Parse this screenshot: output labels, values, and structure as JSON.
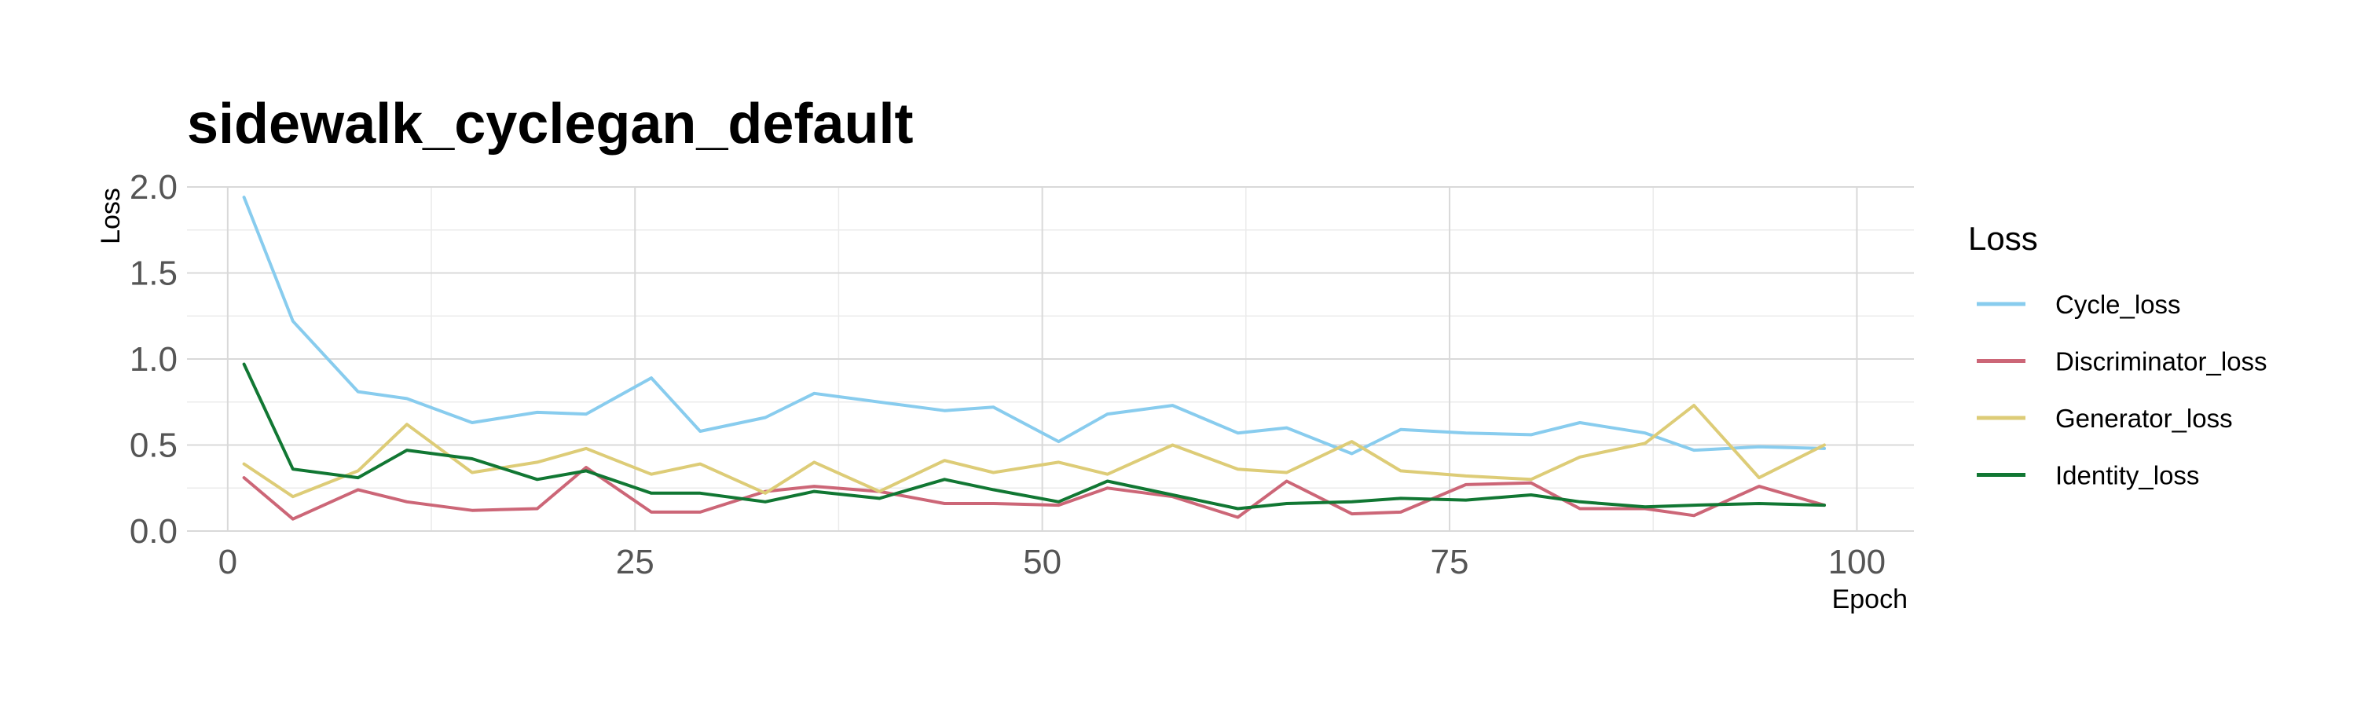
{
  "chart_data": {
    "type": "line",
    "title": "sidewalk_cyclegan_default",
    "xlabel": "Epoch",
    "ylabel": "Loss",
    "xlim": [
      -2.5,
      103.5
    ],
    "ylim": [
      0,
      2.0
    ],
    "x_ticks": [
      0,
      25,
      50,
      75,
      100
    ],
    "y_ticks": [
      0.0,
      0.5,
      1.0,
      1.5,
      2.0
    ],
    "x_tick_labels": [
      "0",
      "25",
      "50",
      "75",
      "100"
    ],
    "y_tick_labels": [
      "0.0",
      "0.5",
      "1.0",
      "1.5",
      "2.0"
    ],
    "grid": true,
    "legend": {
      "title": "Loss",
      "position": "right"
    },
    "x": [
      1,
      4,
      8,
      11,
      15,
      19,
      22,
      26,
      29,
      33,
      36,
      40,
      44,
      47,
      51,
      54,
      58,
      62,
      65,
      69,
      72,
      76,
      80,
      83,
      87,
      90,
      94,
      98
    ],
    "series": [
      {
        "name": "Cycle_loss",
        "color": "#88CCEE",
        "values": [
          1.94,
          1.22,
          0.81,
          0.77,
          0.63,
          0.69,
          0.68,
          0.89,
          0.58,
          0.66,
          0.8,
          0.75,
          0.7,
          0.72,
          0.52,
          0.68,
          0.73,
          0.57,
          0.6,
          0.45,
          0.59,
          0.57,
          0.56,
          0.63,
          0.57,
          0.47,
          0.49,
          0.48
        ]
      },
      {
        "name": "Discriminator_loss",
        "color": "#CC6677",
        "values": [
          0.31,
          0.07,
          0.24,
          0.17,
          0.12,
          0.13,
          0.37,
          0.11,
          0.11,
          0.23,
          0.26,
          0.23,
          0.16,
          0.16,
          0.15,
          0.25,
          0.2,
          0.08,
          0.29,
          0.1,
          0.11,
          0.27,
          0.28,
          0.13,
          0.13,
          0.09,
          0.26,
          0.15
        ]
      },
      {
        "name": "Generator_loss",
        "color": "#DDCC77",
        "values": [
          0.39,
          0.2,
          0.35,
          0.62,
          0.34,
          0.4,
          0.48,
          0.33,
          0.39,
          0.22,
          0.4,
          0.23,
          0.41,
          0.34,
          0.4,
          0.33,
          0.5,
          0.36,
          0.34,
          0.52,
          0.35,
          0.32,
          0.3,
          0.43,
          0.51,
          0.73,
          0.31,
          0.5
        ]
      },
      {
        "name": "Identity_loss",
        "color": "#117733",
        "values": [
          0.97,
          0.36,
          0.31,
          0.47,
          0.42,
          0.3,
          0.35,
          0.22,
          0.22,
          0.17,
          0.23,
          0.19,
          0.3,
          0.24,
          0.17,
          0.29,
          0.21,
          0.13,
          0.16,
          0.17,
          0.19,
          0.18,
          0.21,
          0.17,
          0.14,
          0.15,
          0.16,
          0.15
        ]
      }
    ]
  }
}
